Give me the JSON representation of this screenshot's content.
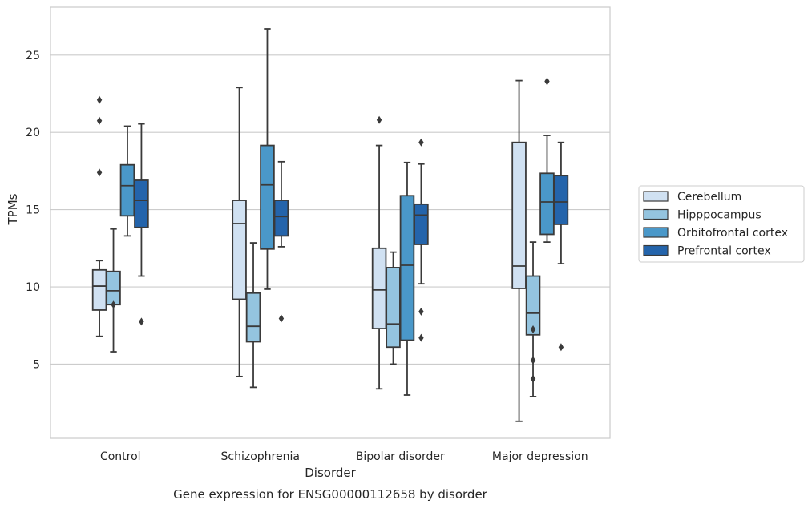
{
  "chart_data": {
    "type": "box",
    "title": "",
    "caption": "Gene expression for ENSG00000112658 by disorder",
    "xlabel": "Disorder",
    "ylabel": "TPMs",
    "ylim": [
      0.2,
      28.1
    ],
    "yticks": [
      5,
      10,
      15,
      20,
      25
    ],
    "grid": "horizontal",
    "legend_position": "right",
    "categories": [
      "Control",
      "Schizophrenia",
      "Bipolar disorder",
      "Major depression"
    ],
    "series": [
      {
        "name": "Cerebellum",
        "color": "#d0e1f2",
        "boxes": [
          {
            "whisker_low": 6.8,
            "q1": 8.5,
            "median": 10.05,
            "q3": 11.1,
            "whisker_high": 11.7,
            "outliers": [
              17.4,
              20.75,
              22.1
            ]
          },
          {
            "whisker_low": 4.2,
            "q1": 9.2,
            "median": 14.1,
            "q3": 15.6,
            "whisker_high": 22.9,
            "outliers": []
          },
          {
            "whisker_low": 3.4,
            "q1": 7.3,
            "median": 9.8,
            "q3": 12.5,
            "whisker_high": 19.15,
            "outliers": [
              20.8
            ]
          },
          {
            "whisker_low": 1.3,
            "q1": 9.9,
            "median": 11.35,
            "q3": 19.35,
            "whisker_high": 23.35,
            "outliers": []
          }
        ]
      },
      {
        "name": "Hipppocampus",
        "color": "#94c4df",
        "boxes": [
          {
            "whisker_low": 5.8,
            "q1": 8.85,
            "median": 9.75,
            "q3": 11.0,
            "whisker_high": 13.75,
            "outliers": [
              8.85
            ]
          },
          {
            "whisker_low": 3.5,
            "q1": 6.45,
            "median": 7.45,
            "q3": 9.6,
            "whisker_high": 12.85,
            "outliers": []
          },
          {
            "whisker_low": 5.0,
            "q1": 6.1,
            "median": 7.6,
            "q3": 11.25,
            "whisker_high": 12.25,
            "outliers": []
          },
          {
            "whisker_low": 2.9,
            "q1": 6.9,
            "median": 8.3,
            "q3": 10.7,
            "whisker_high": 12.9,
            "outliers": [
              7.25,
              5.25,
              4.05
            ]
          }
        ]
      },
      {
        "name": "Orbitofrontal cortex",
        "color": "#4a98c9",
        "boxes": [
          {
            "whisker_low": 13.3,
            "q1": 14.6,
            "median": 16.55,
            "q3": 17.9,
            "whisker_high": 20.4,
            "outliers": []
          },
          {
            "whisker_low": 9.85,
            "q1": 12.45,
            "median": 16.6,
            "q3": 19.15,
            "whisker_high": 26.7,
            "outliers": []
          },
          {
            "whisker_low": 3.0,
            "q1": 6.55,
            "median": 11.4,
            "q3": 15.9,
            "whisker_high": 18.05,
            "outliers": []
          },
          {
            "whisker_low": 12.9,
            "q1": 13.4,
            "median": 15.5,
            "q3": 17.35,
            "whisker_high": 19.8,
            "outliers": [
              23.3
            ]
          }
        ]
      },
      {
        "name": "Prefrontal cortex",
        "color": "#2464ab",
        "boxes": [
          {
            "whisker_low": 10.7,
            "q1": 13.85,
            "median": 15.6,
            "q3": 16.9,
            "whisker_high": 20.55,
            "outliers": [
              7.75
            ]
          },
          {
            "whisker_low": 12.6,
            "q1": 13.3,
            "median": 14.55,
            "q3": 15.6,
            "whisker_high": 18.1,
            "outliers": [
              7.95
            ]
          },
          {
            "whisker_low": 10.2,
            "q1": 12.75,
            "median": 14.65,
            "q3": 15.35,
            "whisker_high": 17.95,
            "outliers": [
              8.4,
              6.7,
              19.35
            ]
          },
          {
            "whisker_low": 11.5,
            "q1": 14.05,
            "median": 15.5,
            "q3": 17.2,
            "whisker_high": 19.35,
            "outliers": [
              6.1
            ]
          }
        ]
      }
    ]
  }
}
